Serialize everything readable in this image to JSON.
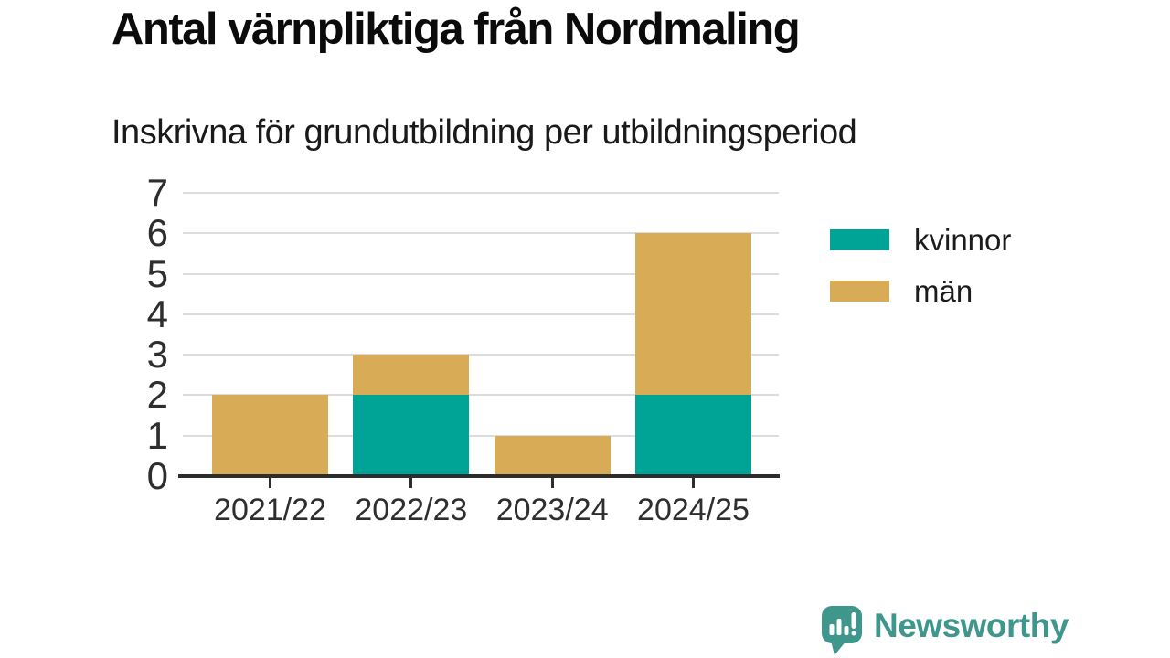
{
  "chart_data": {
    "type": "bar",
    "stacked": true,
    "title": "Antal värnpliktiga från Nordmaling",
    "subtitle": "Inskrivna för grundutbildning per utbildningsperiod",
    "categories": [
      "2021/22",
      "2022/23",
      "2023/24",
      "2024/25"
    ],
    "series": [
      {
        "name": "kvinnor",
        "color": "#00A497",
        "values": [
          0,
          2,
          0,
          2
        ]
      },
      {
        "name": "män",
        "color": "#D8AC57",
        "values": [
          2,
          1,
          1,
          4
        ]
      }
    ],
    "totals": [
      2,
      3,
      1,
      6
    ],
    "xlabel": "",
    "ylabel": "",
    "ylim": [
      0,
      7
    ],
    "yticks": [
      0,
      1,
      2,
      3,
      4,
      5,
      6,
      7
    ],
    "grid": true,
    "legend_position": "right",
    "colors": {
      "gridline": "#DCDCDC",
      "axis": "#2D2D2D",
      "tick_label": "#2E2E2E"
    }
  },
  "branding": {
    "logo_text": "Newsworthy",
    "logo_icon": "speech-bubble-bar-chart-icon",
    "logo_color": "#3E968C"
  }
}
